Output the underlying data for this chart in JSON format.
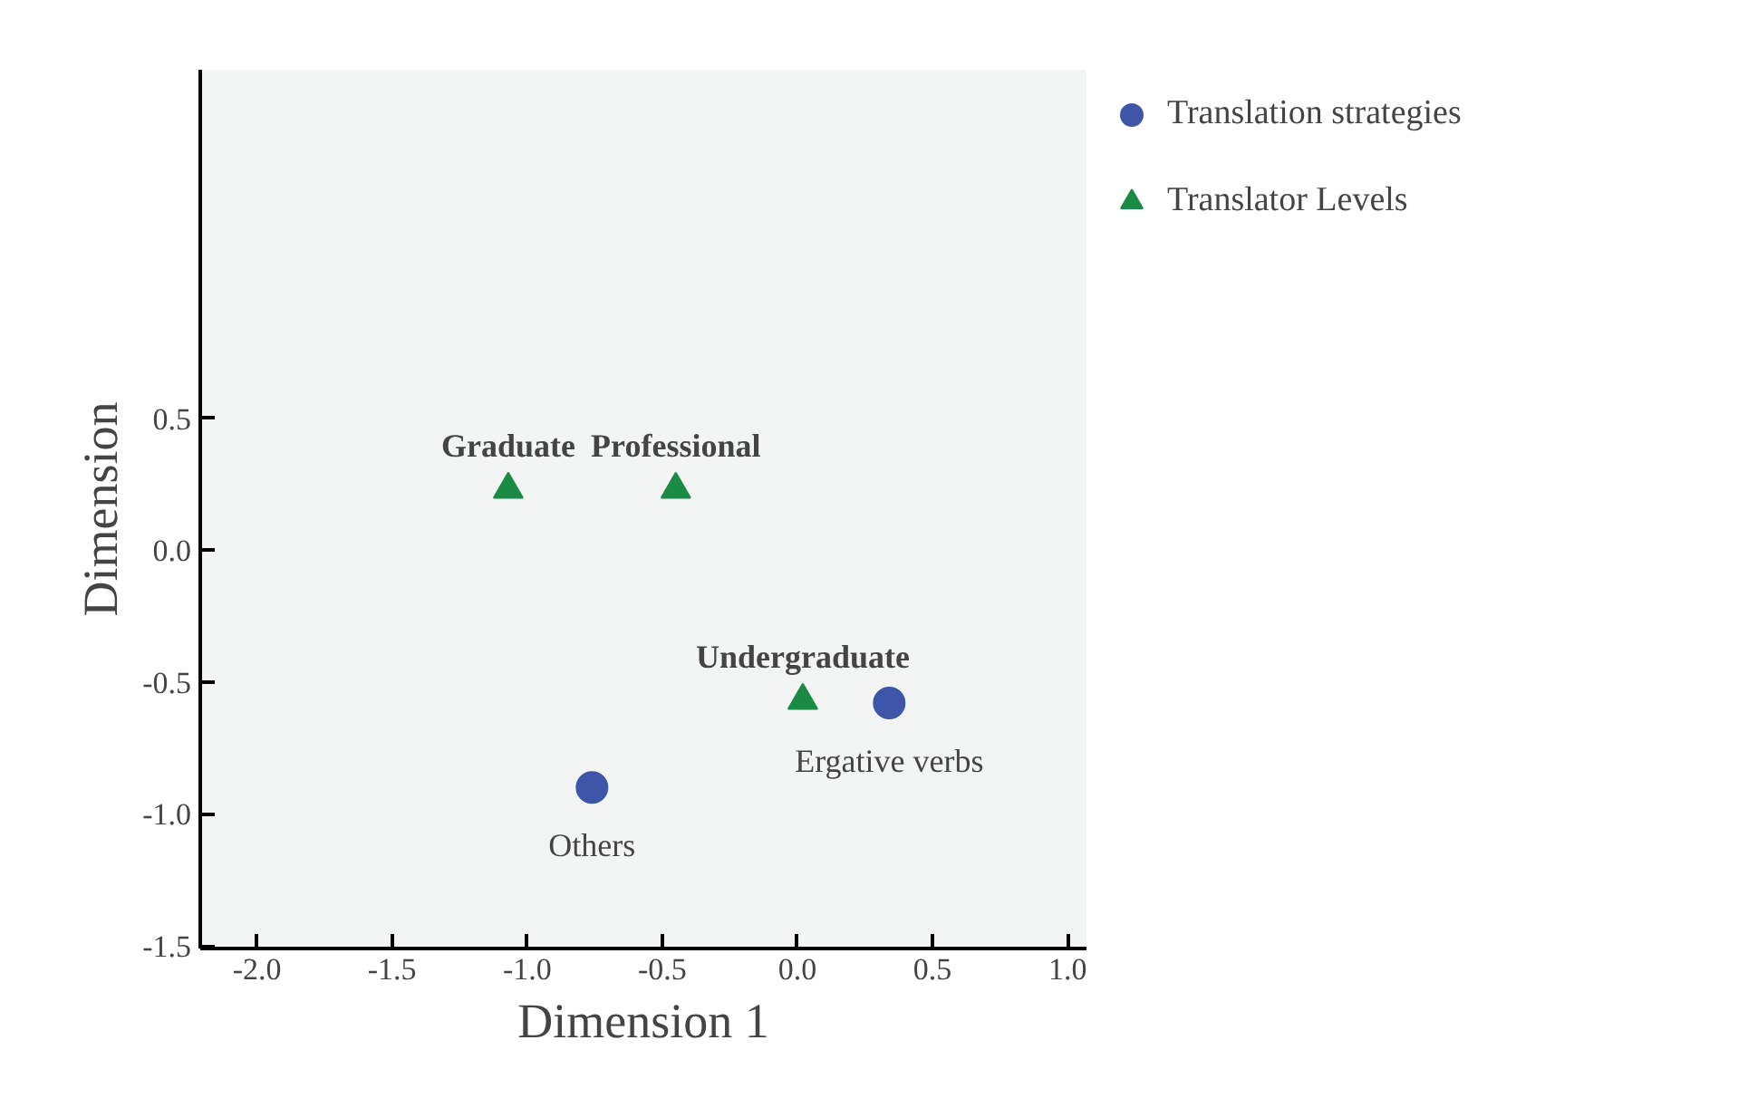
{
  "chart_data": {
    "type": "scatter",
    "xlabel": "Dimension 1",
    "ylabel": "Dimension",
    "xlim": [
      -2.21,
      1.07
    ],
    "ylim": [
      -1.51,
      1.82
    ],
    "xticks": [
      {
        "value": -2,
        "label": "-2.0"
      },
      -1.5,
      {
        "value": -1,
        "label": "-1.0"
      },
      -0.5,
      {
        "value": 0,
        "label": "0.0"
      },
      0.5,
      {
        "value": 1,
        "label": "1.0"
      }
    ],
    "yticks": [
      -1.5,
      {
        "value": -1,
        "label": "-1.0"
      },
      -0.5,
      {
        "value": 0,
        "label": "0.0"
      },
      0.5
    ],
    "grid": false,
    "legend": "top right",
    "series": [
      {
        "name": "Translation strategies",
        "color": "#3f56a8",
        "marker": "circle",
        "x": [
          0.34,
          -0.76
        ],
        "values": [
          -0.58,
          -0.9
        ]
      },
      {
        "name": "Translator Levels",
        "color": "#1a8a45",
        "marker": "triangle",
        "x": [
          -1.07,
          -0.45,
          0.02
        ],
        "values": [
          0.23,
          0.23,
          -0.57
        ]
      }
    ],
    "annotations": [
      {
        "text": "Ergative verbs",
        "x": 0.34,
        "y": -0.58
      },
      {
        "text": "Others",
        "x": -0.76,
        "y": -0.9
      },
      {
        "text": "Graduate",
        "x": -1.07,
        "y": 0.23
      },
      {
        "text": "Professional",
        "x": -0.45,
        "y": 0.23
      },
      {
        "text": "Undergraduate",
        "x": 0.02,
        "y": -0.57
      }
    ]
  }
}
